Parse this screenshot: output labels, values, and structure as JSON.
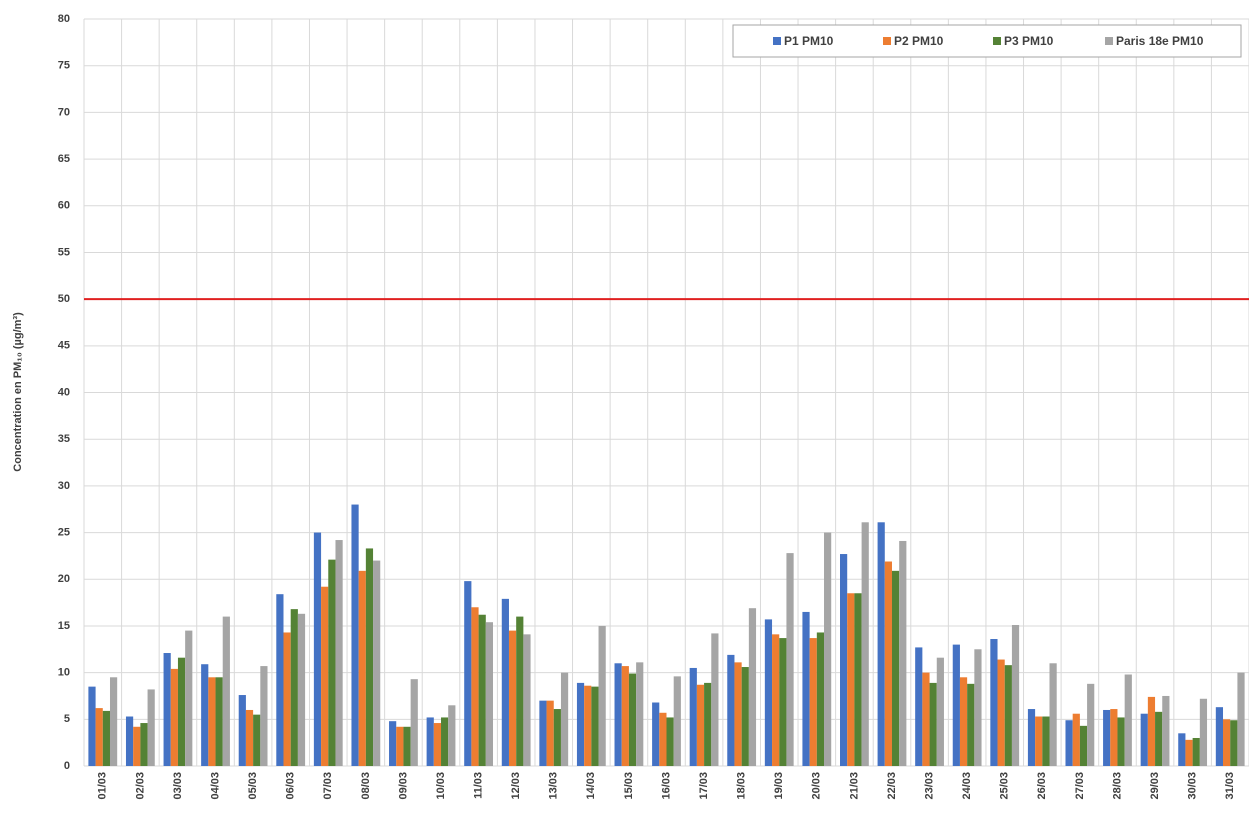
{
  "chart_data": {
    "type": "bar",
    "y_label": "Concentration en PM₁₀ (µg/m³)",
    "categories": [
      "01/03",
      "02/03",
      "03/03",
      "04/03",
      "05/03",
      "06/03",
      "07/03",
      "08/03",
      "09/03",
      "10/03",
      "11/03",
      "12/03",
      "13/03",
      "14/03",
      "15/03",
      "16/03",
      "17/03",
      "18/03",
      "19/03",
      "20/03",
      "21/03",
      "22/03",
      "23/03",
      "24/03",
      "25/03",
      "26/03",
      "27/03",
      "28/03",
      "29/03",
      "30/03",
      "31/03"
    ],
    "series": [
      {
        "name": "P1 PM10",
        "color": "#4472c4",
        "values": [
          8.5,
          5.3,
          12.1,
          10.9,
          7.6,
          18.4,
          25.0,
          28.0,
          4.8,
          5.2,
          19.8,
          17.9,
          7.0,
          8.9,
          11.0,
          6.8,
          10.5,
          11.9,
          15.7,
          16.5,
          22.7,
          26.1,
          12.7,
          13.0,
          13.6,
          6.1,
          4.9,
          6.0,
          5.6,
          3.5,
          6.3
        ]
      },
      {
        "name": "P2 PM10",
        "color": "#ed7d31",
        "values": [
          6.2,
          4.2,
          10.4,
          9.5,
          6.0,
          14.3,
          19.2,
          20.9,
          4.2,
          4.6,
          17.0,
          14.5,
          7.0,
          8.6,
          10.7,
          5.7,
          8.7,
          11.1,
          14.1,
          13.7,
          18.5,
          21.9,
          10.0,
          9.5,
          11.4,
          5.3,
          5.6,
          6.1,
          7.4,
          2.8,
          5.0
        ]
      },
      {
        "name": "P3 PM10",
        "color": "#548235",
        "values": [
          5.9,
          4.6,
          11.6,
          9.5,
          5.5,
          16.8,
          22.1,
          23.3,
          4.2,
          5.2,
          16.2,
          16.0,
          6.1,
          8.5,
          9.9,
          5.2,
          8.9,
          10.6,
          13.7,
          14.3,
          18.5,
          20.9,
          8.9,
          8.8,
          10.8,
          5.3,
          4.3,
          5.2,
          5.8,
          3.0,
          4.9
        ]
      },
      {
        "name": "Paris 18e PM10",
        "color": "#a5a5a5",
        "values": [
          9.5,
          8.2,
          14.5,
          16.0,
          10.7,
          16.3,
          24.2,
          22.0,
          9.3,
          6.5,
          15.4,
          14.1,
          10.0,
          15.0,
          11.1,
          9.6,
          14.2,
          16.9,
          22.8,
          25.0,
          26.1,
          24.1,
          11.6,
          12.5,
          15.1,
          11.0,
          8.8,
          9.8,
          7.5,
          7.2,
          10.0
        ]
      }
    ],
    "threshold": {
      "value": 50,
      "color": "#e02020"
    },
    "ylim": [
      0,
      80
    ],
    "yticks": [
      0,
      5,
      10,
      15,
      20,
      25,
      30,
      35,
      40,
      45,
      50,
      55,
      60,
      65,
      70,
      75,
      80
    ],
    "grid": true,
    "legend": "top-right"
  }
}
